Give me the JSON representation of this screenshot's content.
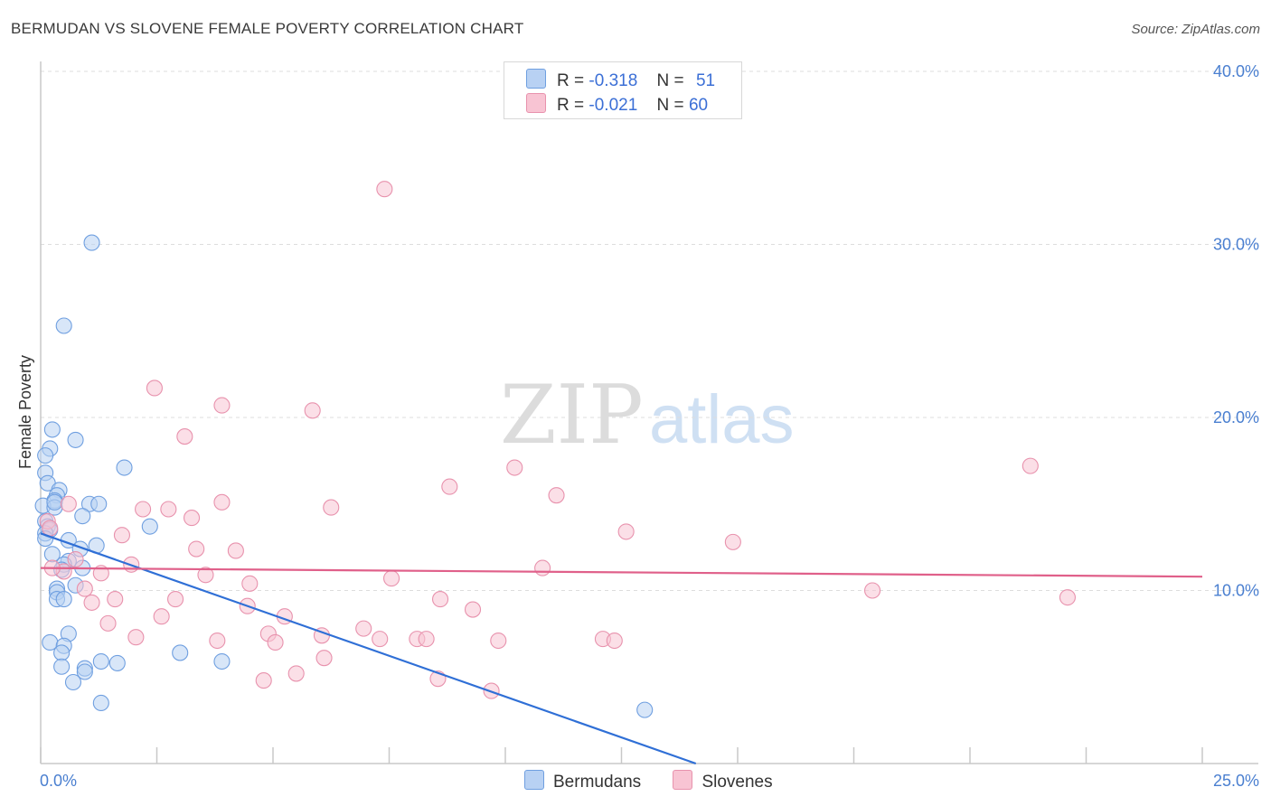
{
  "title": "BERMUDAN VS SLOVENE FEMALE POVERTY CORRELATION CHART",
  "source": "Source: ZipAtlas.com",
  "watermark": {
    "zip": "ZIP",
    "atlas": "atlas"
  },
  "legend": {
    "rows": [
      {
        "r_label": "R =",
        "r_value": "-0.318",
        "n_label": "N =",
        "n_value": "51"
      },
      {
        "r_label": "R =",
        "r_value": "-0.021",
        "n_label": "N =",
        "n_value": "60"
      }
    ],
    "bottom": [
      "Bermudans",
      "Slovenes"
    ]
  },
  "colors": {
    "bermudans_fill": "#b8d1f3",
    "bermudans_stroke": "#6f9fe0",
    "bermudans_line": "#2f6fd6",
    "slovenes_fill": "#f8c4d3",
    "slovenes_stroke": "#e892ad",
    "slovenes_line": "#e0608a",
    "tick_label": "#4a7fd0",
    "grid": "#dddddd"
  },
  "chart_data": {
    "type": "scatter",
    "title": "BERMUDAN VS SLOVENE FEMALE POVERTY CORRELATION CHART",
    "xlabel": "",
    "ylabel": "Female Poverty",
    "xlim": [
      0,
      25
    ],
    "ylim": [
      0,
      40
    ],
    "x_tick_labels": [
      {
        "value": 0,
        "label": "0.0%"
      },
      {
        "value": 25,
        "label": "25.0%"
      }
    ],
    "y_tick_labels": [
      {
        "value": 10,
        "label": "10.0%"
      },
      {
        "value": 20,
        "label": "20.0%"
      },
      {
        "value": 30,
        "label": "30.0%"
      },
      {
        "value": 40,
        "label": "40.0%"
      }
    ],
    "grid": true,
    "legend_position": "top-center",
    "series": [
      {
        "name": "Bermudans",
        "r": -0.318,
        "n": 51,
        "trend": {
          "x": [
            0,
            14.1
          ],
          "y": [
            13.3,
            0
          ]
        },
        "points": [
          [
            1.1,
            30.1
          ],
          [
            0.5,
            25.3
          ],
          [
            0.25,
            19.3
          ],
          [
            0.75,
            18.7
          ],
          [
            0.2,
            18.2
          ],
          [
            0.1,
            17.8
          ],
          [
            1.8,
            17.1
          ],
          [
            0.1,
            16.8
          ],
          [
            0.15,
            16.2
          ],
          [
            0.4,
            15.8
          ],
          [
            0.35,
            15.5
          ],
          [
            0.3,
            15.2
          ],
          [
            1.05,
            15.0
          ],
          [
            1.25,
            15.0
          ],
          [
            0.05,
            14.9
          ],
          [
            0.3,
            14.8
          ],
          [
            0.9,
            14.3
          ],
          [
            0.1,
            14.0
          ],
          [
            0.15,
            13.7
          ],
          [
            2.35,
            13.7
          ],
          [
            0.2,
            13.5
          ],
          [
            0.1,
            13.3
          ],
          [
            0.6,
            12.9
          ],
          [
            1.2,
            12.6
          ],
          [
            0.85,
            12.4
          ],
          [
            0.25,
            12.1
          ],
          [
            0.6,
            11.7
          ],
          [
            0.5,
            11.5
          ],
          [
            0.9,
            11.3
          ],
          [
            0.45,
            11.2
          ],
          [
            0.75,
            10.3
          ],
          [
            0.35,
            10.1
          ],
          [
            0.35,
            9.9
          ],
          [
            0.35,
            9.5
          ],
          [
            0.5,
            9.5
          ],
          [
            0.6,
            7.5
          ],
          [
            0.2,
            7.0
          ],
          [
            0.5,
            6.8
          ],
          [
            0.45,
            6.4
          ],
          [
            3.0,
            6.4
          ],
          [
            1.3,
            5.9
          ],
          [
            1.65,
            5.8
          ],
          [
            3.9,
            5.9
          ],
          [
            0.45,
            5.6
          ],
          [
            0.95,
            5.5
          ],
          [
            0.95,
            5.3
          ],
          [
            0.7,
            4.7
          ],
          [
            1.3,
            3.5
          ],
          [
            13.0,
            3.1
          ],
          [
            0.1,
            13.0
          ],
          [
            0.3,
            15.1
          ]
        ]
      },
      {
        "name": "Slovenes",
        "r": -0.021,
        "n": 60,
        "trend": {
          "x": [
            0,
            25
          ],
          "y": [
            11.3,
            10.8
          ]
        },
        "points": [
          [
            7.4,
            33.2
          ],
          [
            2.45,
            21.7
          ],
          [
            3.9,
            20.7
          ],
          [
            5.85,
            20.4
          ],
          [
            3.1,
            18.9
          ],
          [
            10.2,
            17.1
          ],
          [
            21.3,
            17.2
          ],
          [
            8.8,
            16.0
          ],
          [
            11.1,
            15.5
          ],
          [
            3.9,
            15.1
          ],
          [
            0.6,
            15.0
          ],
          [
            2.2,
            14.7
          ],
          [
            2.75,
            14.7
          ],
          [
            6.25,
            14.8
          ],
          [
            3.25,
            14.2
          ],
          [
            0.15,
            14.0
          ],
          [
            0.2,
            13.6
          ],
          [
            1.75,
            13.2
          ],
          [
            12.6,
            13.4
          ],
          [
            14.9,
            12.8
          ],
          [
            3.35,
            12.4
          ],
          [
            4.2,
            12.3
          ],
          [
            1.95,
            11.5
          ],
          [
            10.8,
            11.3
          ],
          [
            0.75,
            11.8
          ],
          [
            0.5,
            11.1
          ],
          [
            0.25,
            11.3
          ],
          [
            1.3,
            11.0
          ],
          [
            3.55,
            10.9
          ],
          [
            7.55,
            10.7
          ],
          [
            4.5,
            10.4
          ],
          [
            0.95,
            10.1
          ],
          [
            17.9,
            10.0
          ],
          [
            22.1,
            9.6
          ],
          [
            8.6,
            9.5
          ],
          [
            2.9,
            9.5
          ],
          [
            1.6,
            9.5
          ],
          [
            1.1,
            9.3
          ],
          [
            4.45,
            9.1
          ],
          [
            9.3,
            8.9
          ],
          [
            2.6,
            8.5
          ],
          [
            5.25,
            8.5
          ],
          [
            1.45,
            8.1
          ],
          [
            6.95,
            7.8
          ],
          [
            4.9,
            7.5
          ],
          [
            6.05,
            7.4
          ],
          [
            2.05,
            7.3
          ],
          [
            7.3,
            7.2
          ],
          [
            8.1,
            7.2
          ],
          [
            8.3,
            7.2
          ],
          [
            9.85,
            7.1
          ],
          [
            12.1,
            7.2
          ],
          [
            12.35,
            7.1
          ],
          [
            3.8,
            7.1
          ],
          [
            5.05,
            7.0
          ],
          [
            6.1,
            6.1
          ],
          [
            5.5,
            5.2
          ],
          [
            4.8,
            4.8
          ],
          [
            8.55,
            4.9
          ],
          [
            9.7,
            4.2
          ]
        ]
      }
    ]
  }
}
